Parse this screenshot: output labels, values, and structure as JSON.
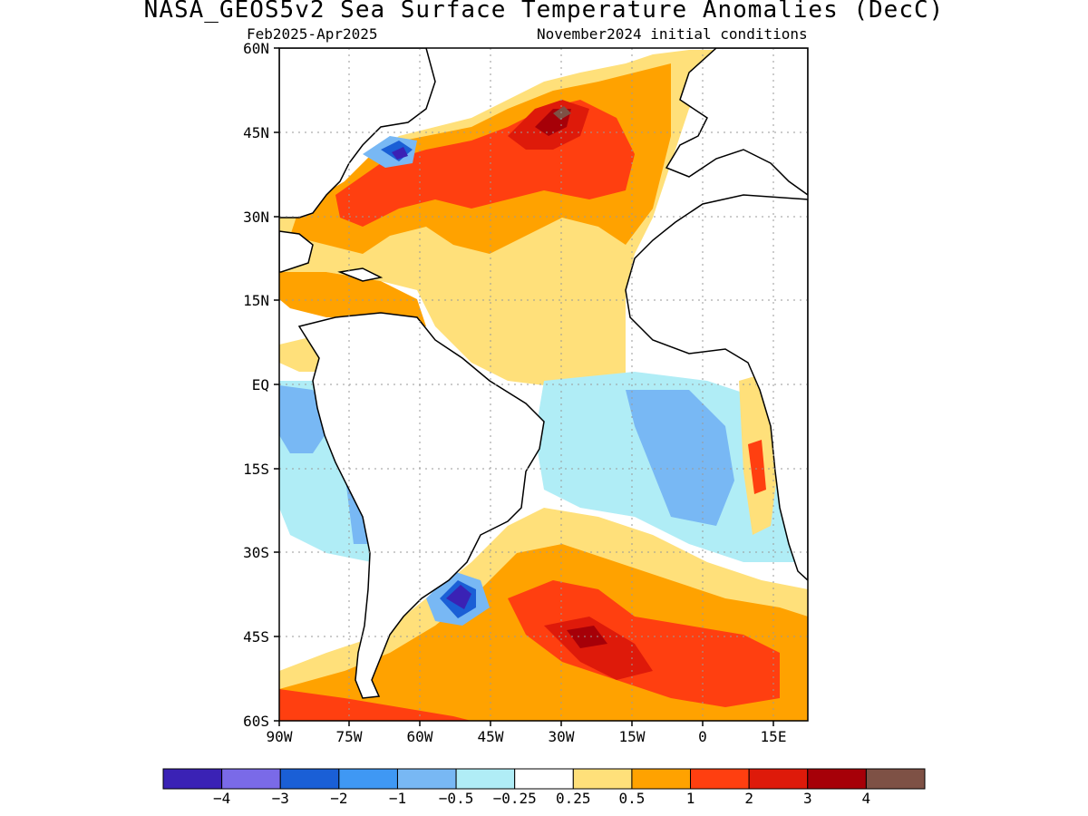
{
  "title": "NASA_GEOS5v2 Sea Surface Temperature Anomalies (DecC)",
  "subtitle_left": "Feb2025-Apr2025",
  "subtitle_right": "November2024 initial conditions",
  "map": {
    "region": "Atlantic Ocean",
    "lat_ticks": [
      "60N",
      "45N",
      "30N",
      "15N",
      "EQ",
      "15S",
      "30S",
      "45S",
      "60S"
    ],
    "lon_ticks": [
      "90W",
      "75W",
      "60W",
      "45W",
      "30W",
      "15W",
      "0",
      "15E"
    ],
    "gridlines": "dotted"
  },
  "colorbar": {
    "colors": [
      "#3a22b5",
      "#7a6ae8",
      "#1a5fd6",
      "#3f98f4",
      "#78b8f4",
      "#b0edf6",
      "#ffffff",
      "#ffe07a",
      "#ffa200",
      "#ff3f10",
      "#de1a0a",
      "#a60008",
      "#7e5145"
    ],
    "labels": [
      "-4",
      "-3",
      "-2",
      "-1",
      "-0.5",
      "-0.25",
      "0.25",
      "0.5",
      "1",
      "2",
      "3",
      "4"
    ]
  }
}
